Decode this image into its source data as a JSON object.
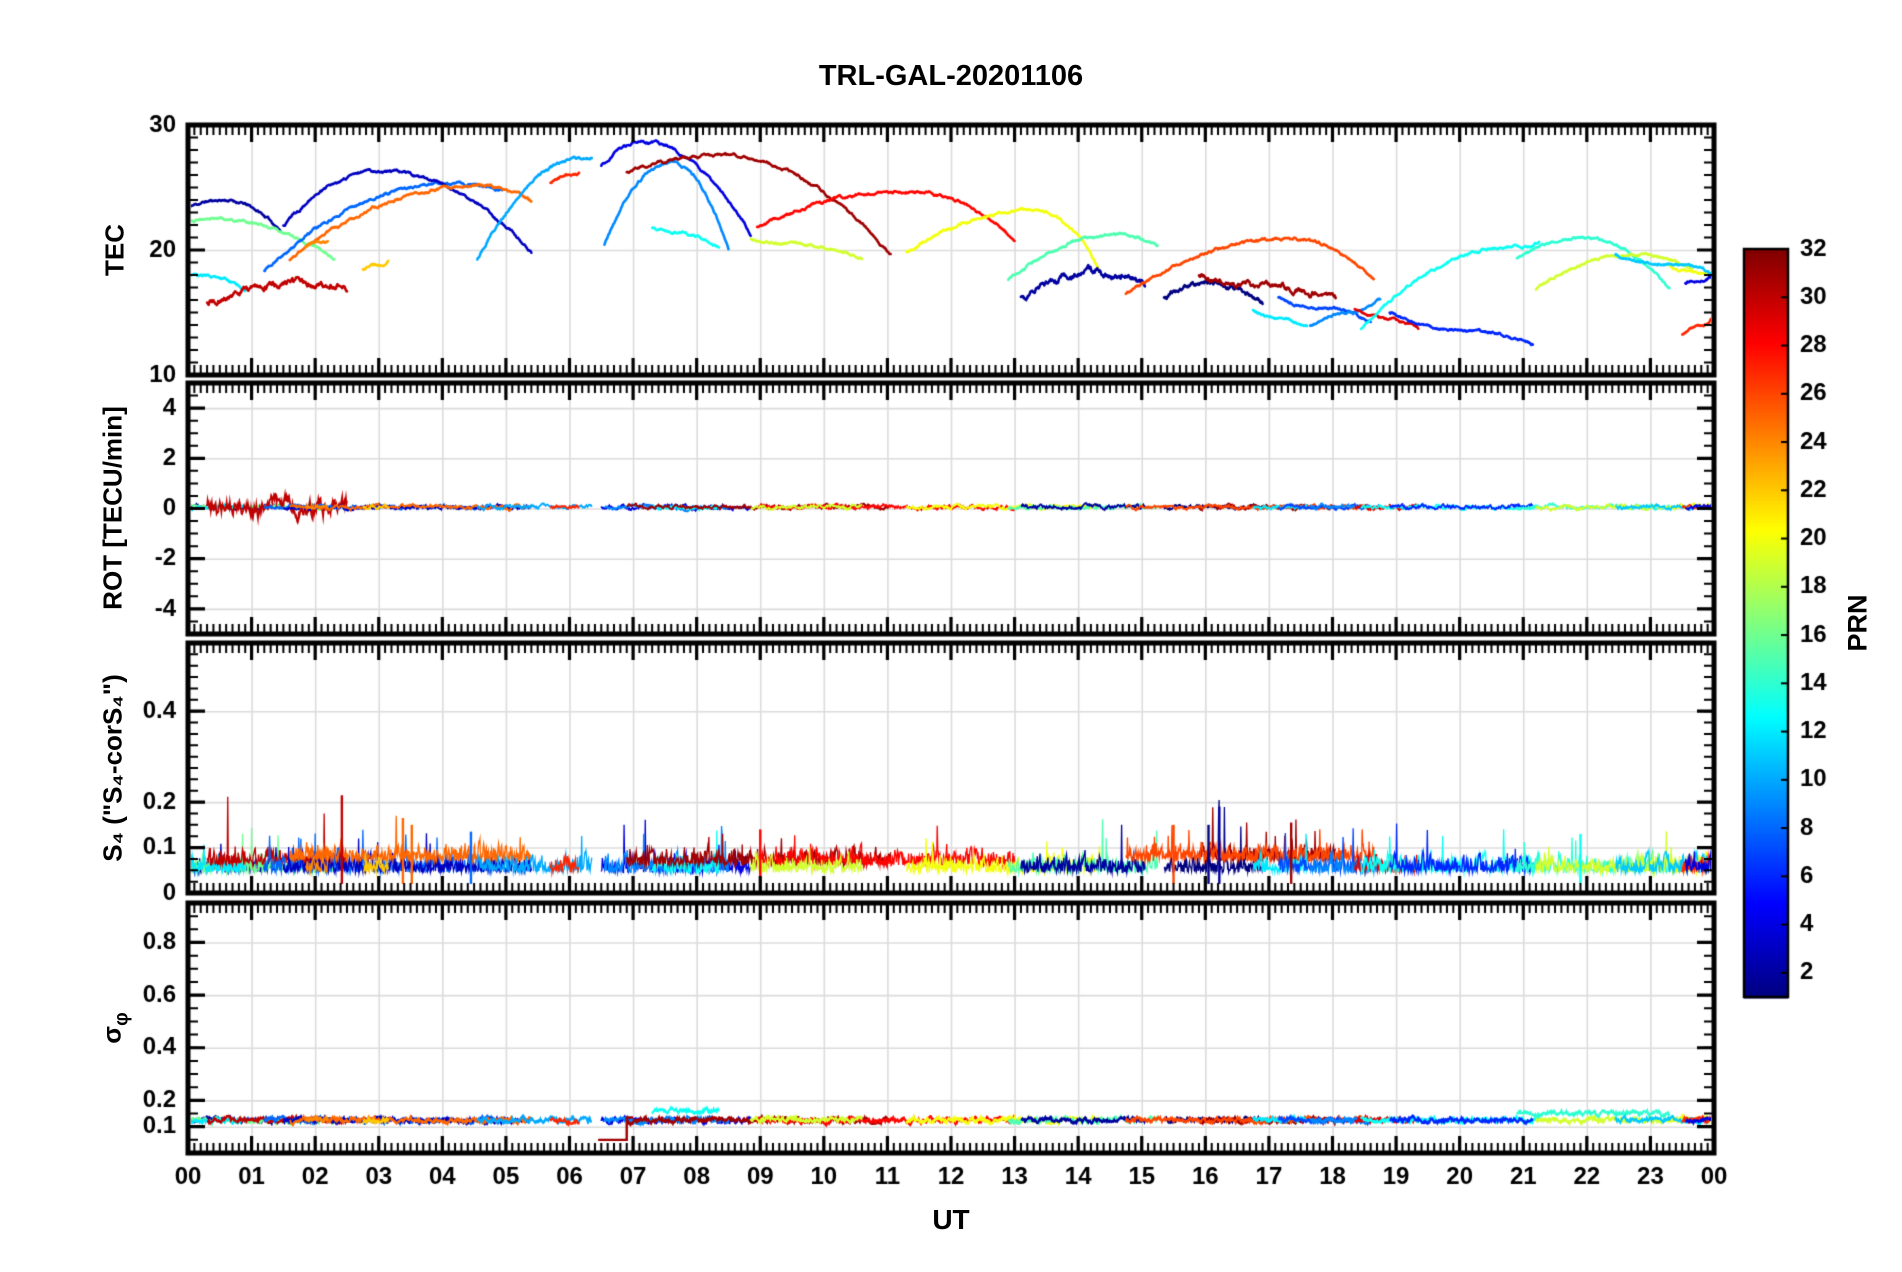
{
  "title": "TRL-GAL-20201106",
  "xlabel": "UT",
  "chart_data": {
    "type": "line",
    "station": "TRL-GAL-20201106",
    "x_axis": {
      "label": "UT",
      "range_hours": [
        0,
        24
      ],
      "tick_labels": [
        "00",
        "01",
        "02",
        "03",
        "04",
        "05",
        "06",
        "07",
        "08",
        "09",
        "10",
        "11",
        "12",
        "13",
        "14",
        "15",
        "16",
        "17",
        "18",
        "19",
        "20",
        "21",
        "22",
        "23",
        "00"
      ]
    },
    "panels": [
      {
        "name": "TEC",
        "ylabel": "TEC",
        "ylim": [
          10,
          30
        ],
        "yticks": [
          {
            "v": 10,
            "l": "10"
          },
          {
            "v": 20,
            "l": "20"
          },
          {
            "v": 30,
            "l": "30"
          }
        ]
      },
      {
        "name": "ROT",
        "ylabel": "ROT [TECU/min]",
        "ylim": [
          -5,
          5
        ],
        "yticks": [
          {
            "v": -4,
            "l": "-4"
          },
          {
            "v": -2,
            "l": "-2"
          },
          {
            "v": 0,
            "l": "0"
          },
          {
            "v": 2,
            "l": "2"
          },
          {
            "v": 4,
            "l": "4"
          }
        ]
      },
      {
        "name": "S4",
        "ylabel": "S₄ (\"S₄-corS₄\")",
        "ylim": [
          0,
          0.55
        ],
        "yticks": [
          {
            "v": 0,
            "l": "0"
          },
          {
            "v": 0.1,
            "l": "0.1"
          },
          {
            "v": 0.2,
            "l": "0.2"
          },
          {
            "v": 0.4,
            "l": "0.4"
          }
        ]
      },
      {
        "name": "sigma_phi",
        "ylabel": "σ",
        "ylabel_sub": "φ",
        "ylim": [
          0,
          0.95
        ],
        "yticks": [
          {
            "v": 0.1,
            "l": "0.1"
          },
          {
            "v": 0.2,
            "l": "0.2"
          },
          {
            "v": 0.4,
            "l": "0.4"
          },
          {
            "v": 0.6,
            "l": "0.6"
          },
          {
            "v": 0.8,
            "l": "0.8"
          }
        ]
      }
    ],
    "colorbar": {
      "label": "PRN",
      "min": 1,
      "max": 32,
      "ticks": [
        2,
        4,
        6,
        8,
        10,
        12,
        14,
        16,
        18,
        20,
        22,
        24,
        26,
        28,
        30,
        32
      ]
    },
    "satellite_arcs": [
      {
        "prn": 2,
        "t0": 0.0,
        "tp": 0.55,
        "t1": 1.45,
        "y0": 23.4,
        "yp": 24.0,
        "y1": 21.6
      },
      {
        "prn": 16,
        "t0": 0.0,
        "tp": 0.4,
        "t1": 2.3,
        "y0": 22.3,
        "yp": 22.5,
        "y1": 19.3
      },
      {
        "prn": 12,
        "t0": 0.0,
        "tp": 0.25,
        "t1": 0.9,
        "y0": 18.0,
        "yp": 17.9,
        "y1": 16.7
      },
      {
        "prn": 30,
        "t0": 0.3,
        "tp": 1.9,
        "t1": 2.5,
        "y0": 15.8,
        "yp": 17.4,
        "y1": 17.1,
        "noise": 0.3,
        "rotAmp": 0.5,
        "s4base": 0.06,
        "s4max": 0.2
      },
      {
        "prn": 8,
        "t0": 1.2,
        "tp": 4.15,
        "t1": 4.95,
        "y0": 18.3,
        "yp": 25.4,
        "y1": 24.7
      },
      {
        "prn": 3,
        "t0": 1.5,
        "tp": 3.05,
        "t1": 5.4,
        "y0": 21.9,
        "yp": 26.3,
        "y1": 19.8
      },
      {
        "prn": 25,
        "t0": 1.6,
        "tp": 4.6,
        "t1": 5.4,
        "y0": 19.2,
        "yp": 25.2,
        "y1": 23.8,
        "s4base": 0.07,
        "s4max": 0.17
      },
      {
        "prn": 22,
        "t0": 2.75,
        "tp": 2.95,
        "t1": 3.15,
        "y0": 18.4,
        "yp": 18.8,
        "y1": 19.2
      },
      {
        "prn": 24,
        "t0": 1.85,
        "tp": 2.0,
        "t1": 2.2,
        "y0": 20.2,
        "yp": 20.5,
        "y1": 20.7
      },
      {
        "prn": 10,
        "t0": 4.55,
        "tp": 6.2,
        "t1": 6.35,
        "y0": 19.2,
        "yp": 27.3,
        "y1": 27.5
      },
      {
        "prn": 27,
        "t0": 5.7,
        "tp": 6.0,
        "t1": 6.15,
        "y0": 25.4,
        "yp": 26.0,
        "y1": 26.2
      },
      {
        "prn": 4,
        "t0": 6.5,
        "tp": 7.15,
        "t1": 8.85,
        "y0": 26.7,
        "yp": 28.6,
        "y1": 21.3
      },
      {
        "prn": 9,
        "t0": 6.55,
        "tp": 7.6,
        "t1": 8.5,
        "y0": 20.4,
        "yp": 27.0,
        "y1": 20.1
      },
      {
        "prn": 13,
        "t0": 7.3,
        "tp": 7.55,
        "t1": 8.35,
        "y0": 21.8,
        "yp": 21.5,
        "y1": 20.2,
        "sigBase": 0.16
      },
      {
        "prn": 31,
        "t0": 6.9,
        "tp": 8.35,
        "t1": 11.05,
        "y0": 26.2,
        "yp": 27.6,
        "y1": 19.6,
        "s4base": 0.06
      },
      {
        "prn": 28,
        "t0": 8.95,
        "tp": 11.3,
        "t1": 13.0,
        "y0": 21.8,
        "yp": 24.7,
        "y1": 20.9,
        "s4base": 0.06
      },
      {
        "prn": 19,
        "t0": 8.85,
        "tp": 9.4,
        "t1": 10.6,
        "y0": 20.9,
        "yp": 20.5,
        "y1": 19.3
      },
      {
        "prn": 20,
        "t0": 11.3,
        "tp": 13.3,
        "t1": 14.35,
        "y0": 19.8,
        "yp": 23.2,
        "y1": 18.4
      },
      {
        "prn": 15,
        "t0": 12.9,
        "tp": 14.6,
        "t1": 15.25,
        "y0": 17.6,
        "yp": 21.2,
        "y1": 20.3
      },
      {
        "prn": 2,
        "t0": 13.1,
        "tp": 14.3,
        "t1": 15.05,
        "y0": 16.2,
        "yp": 18.1,
        "y1": 17.4,
        "noise": 0.3
      },
      {
        "prn": 1,
        "t0": 15.35,
        "tp": 16.1,
        "t1": 16.9,
        "y0": 16.3,
        "yp": 17.3,
        "y1": 15.9,
        "noise": 0.25,
        "s4max": 0.19
      },
      {
        "prn": 31,
        "t0": 15.9,
        "tp": 16.6,
        "t1": 18.05,
        "y0": 17.9,
        "yp": 17.2,
        "y1": 16.1,
        "noise": 0.25,
        "s4base": 0.07,
        "s4max": 0.17
      },
      {
        "prn": 26,
        "t0": 14.75,
        "tp": 17.35,
        "t1": 18.65,
        "y0": 16.5,
        "yp": 20.9,
        "y1": 17.6,
        "s4base": 0.07
      },
      {
        "prn": 12,
        "t0": 16.75,
        "tp": 17.1,
        "t1": 17.6,
        "y0": 15.2,
        "yp": 14.6,
        "y1": 13.9
      },
      {
        "prn": 7,
        "t0": 17.15,
        "tp": 17.8,
        "t1": 18.6,
        "y0": 16.2,
        "yp": 15.4,
        "y1": 14.3
      },
      {
        "prn": 9,
        "t0": 17.65,
        "tp": 18.3,
        "t1": 18.75,
        "y0": 13.9,
        "yp": 15.0,
        "y1": 16.0
      },
      {
        "prn": 29,
        "t0": 18.35,
        "tp": 18.85,
        "t1": 19.35,
        "y0": 15.3,
        "yp": 14.5,
        "y1": 13.7
      },
      {
        "prn": 13,
        "t0": 18.45,
        "tp": 20.9,
        "t1": 21.25,
        "y0": 13.7,
        "yp": 20.3,
        "y1": 20.6
      },
      {
        "prn": 6,
        "t0": 18.9,
        "tp": 20.1,
        "t1": 21.15,
        "y0": 15.0,
        "yp": 13.6,
        "y1": 12.4
      },
      {
        "prn": 14,
        "t0": 20.9,
        "tp": 21.9,
        "t1": 23.3,
        "y0": 19.3,
        "yp": 21.0,
        "y1": 17.0,
        "sigBase": 0.15
      },
      {
        "prn": 19,
        "t0": 21.2,
        "tp": 22.7,
        "t1": 23.65,
        "y0": 16.9,
        "yp": 19.6,
        "y1": 18.5
      },
      {
        "prn": 20,
        "t0": 23.3,
        "tp": 23.6,
        "t1": 24.0,
        "y0": 18.7,
        "yp": 18.3,
        "y1": 17.8
      },
      {
        "prn": 11,
        "t0": 22.45,
        "tp": 23.2,
        "t1": 24.0,
        "y0": 19.6,
        "yp": 18.9,
        "y1": 17.9
      },
      {
        "prn": 27,
        "t0": 23.5,
        "tp": 23.8,
        "t1": 24.0,
        "y0": 13.3,
        "yp": 14.0,
        "y1": 14.7
      },
      {
        "prn": 4,
        "t0": 23.55,
        "tp": 23.8,
        "t1": 24.0,
        "y0": 17.3,
        "yp": 17.7,
        "y1": 18.0
      }
    ],
    "s4_spikes": [
      {
        "prn": 30,
        "t": 2.42,
        "v": 0.215
      },
      {
        "prn": 25,
        "t": 3.38,
        "v": 0.165
      },
      {
        "prn": 25,
        "t": 3.52,
        "v": 0.15
      },
      {
        "prn": 8,
        "t": 4.45,
        "v": 0.135
      },
      {
        "prn": 28,
        "t": 9.0,
        "v": 0.14
      },
      {
        "prn": 26,
        "t": 15.5,
        "v": 0.15
      },
      {
        "prn": 1,
        "t": 16.05,
        "v": 0.15
      },
      {
        "prn": 2,
        "t": 16.22,
        "v": 0.19
      },
      {
        "prn": 31,
        "t": 17.35,
        "v": 0.155
      },
      {
        "prn": 13,
        "t": 21.9,
        "v": 0.13
      }
    ],
    "sigma_special": [
      {
        "prn": 31,
        "t0": 6.45,
        "t_step": 6.9,
        "t1": 7.0,
        "base": 0.05,
        "step_to": 0.135
      }
    ]
  },
  "style": {
    "background": "#ffffff",
    "grid_color": "#dcdcdc",
    "frame_color": "#000000",
    "text_color": "#000000",
    "jet_stops": [
      "#00008f",
      "#0000ff",
      "#00ffff",
      "#80ff80",
      "#ffff00",
      "#ff0000",
      "#800000"
    ]
  }
}
